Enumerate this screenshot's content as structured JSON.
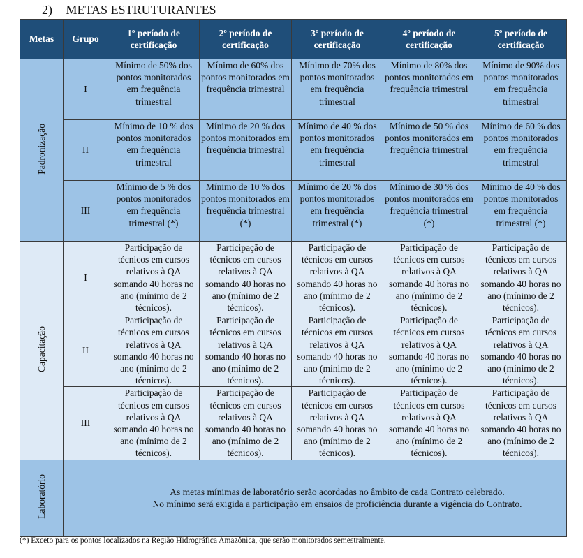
{
  "section": {
    "number": "2)",
    "title": "METAS ESTRUTURANTES"
  },
  "table": {
    "headers": [
      "Metas",
      "Grupo",
      "1º período de certificação",
      "2º período de certificação",
      "3º período de certificação",
      "4º período de certificação",
      "5º período de certificação"
    ],
    "groups": [
      {
        "meta": "Padronização",
        "class": "pad",
        "rows": [
          {
            "grupo": "I",
            "cells": [
              "Mínimo de 50% dos pontos monitorados em frequência trimestral",
              "Mínimo de 60% dos pontos monitorados em frequência trimestral",
              "Mínimo de 70% dos pontos monitorados em frequência trimestral",
              "Mínimo de 80% dos pontos monitorados em frequência trimestral",
              "Mínimo de 90% dos pontos monitorados em frequência trimestral"
            ]
          },
          {
            "grupo": "II",
            "cells": [
              "Mínimo de 10 % dos pontos monitorados em frequência trimestral",
              "Mínimo de 20 % dos pontos monitorados em frequência trimestral",
              "Mínimo de 40 % dos pontos monitorados em frequência trimestral",
              "Mínimo de 50 % dos pontos monitorados em frequência trimestral",
              "Mínimo de 60 % dos pontos monitorados em frequência trimestral"
            ]
          },
          {
            "grupo": "III",
            "cells": [
              "Mínimo de 5 % dos pontos monitorados em frequência trimestral (*)",
              "Mínimo de 10 % dos pontos monitorados em frequência trimestral (*)",
              "Mínimo de 20 % dos pontos monitorados em frequência trimestral (*)",
              "Mínimo de 30 % dos pontos monitorados em frequência trimestral (*)",
              "Mínimo de 40 % dos pontos monitorados em frequência trimestral (*)"
            ]
          }
        ]
      },
      {
        "meta": "Capacitação",
        "class": "cap",
        "rows": [
          {
            "grupo": "I",
            "cells": [
              "Participação de técnicos em cursos relativos à QA somando 40 horas no ano (mínimo de 2 técnicos).",
              "Participação de técnicos em cursos relativos à QA somando 40 horas no ano (mínimo de 2 técnicos).",
              "Participação de técnicos em cursos relativos à QA somando 40 horas no ano (mínimo de 2 técnicos).",
              "Participação de técnicos em cursos relativos à QA somando 40 horas no ano (mínimo de 2 técnicos).",
              "Participação de técnicos em cursos relativos à QA somando 40 horas no ano (mínimo de 2 técnicos)."
            ]
          },
          {
            "grupo": "II",
            "cells": [
              "Participação de técnicos em cursos relativos à QA somando 40 horas no ano (mínimo de 2 técnicos).",
              "Participação de técnicos em cursos relativos à QA somando 40 horas no ano (mínimo de 2 técnicos).",
              "Participação de técnicos em cursos relativos à QA somando 40 horas no ano (mínimo de 2 técnicos).",
              "Participação de técnicos em cursos relativos à QA somando 40 horas no ano (mínimo de 2 técnicos).",
              "Participação de técnicos em cursos relativos à QA somando 40 horas no ano (mínimo de 2 técnicos)."
            ]
          },
          {
            "grupo": "III",
            "cells": [
              "Participação de técnicos em cursos relativos à QA somando 40 horas no ano (mínimo de 2 técnicos).",
              "Participação de técnicos em cursos relativos à QA somando 40 horas no ano (mínimo de 2 técnicos).",
              "Participação de técnicos em cursos relativos à QA somando 40 horas no ano (mínimo de 2 técnicos).",
              "Participação de técnicos em cursos relativos à QA somando 40 horas no ano (mínimo de 2 técnicos).",
              "Participação de técnicos em cursos relativos à QA somando 40 horas no ano (mínimo de 2 técnicos)."
            ]
          }
        ]
      }
    ],
    "laboratorio": {
      "meta": "Laboratório",
      "line1": "As metas mínimas de laboratório serão acordadas no âmbito de cada Contrato celebrado.",
      "line2": "No mínimo será exigida a participação em ensaios de proficiência durante a vigência do Contrato."
    }
  },
  "footnote": "(*) Exceto para os pontos localizados na Região Hidrográfica Amazônica, que serão monitorados semestralmente.",
  "colors": {
    "header": "#1f4e79",
    "padronizacao": "#9dc3e6",
    "capacitacao": "#deeaf6",
    "laboratorio": "#9dc3e6"
  }
}
